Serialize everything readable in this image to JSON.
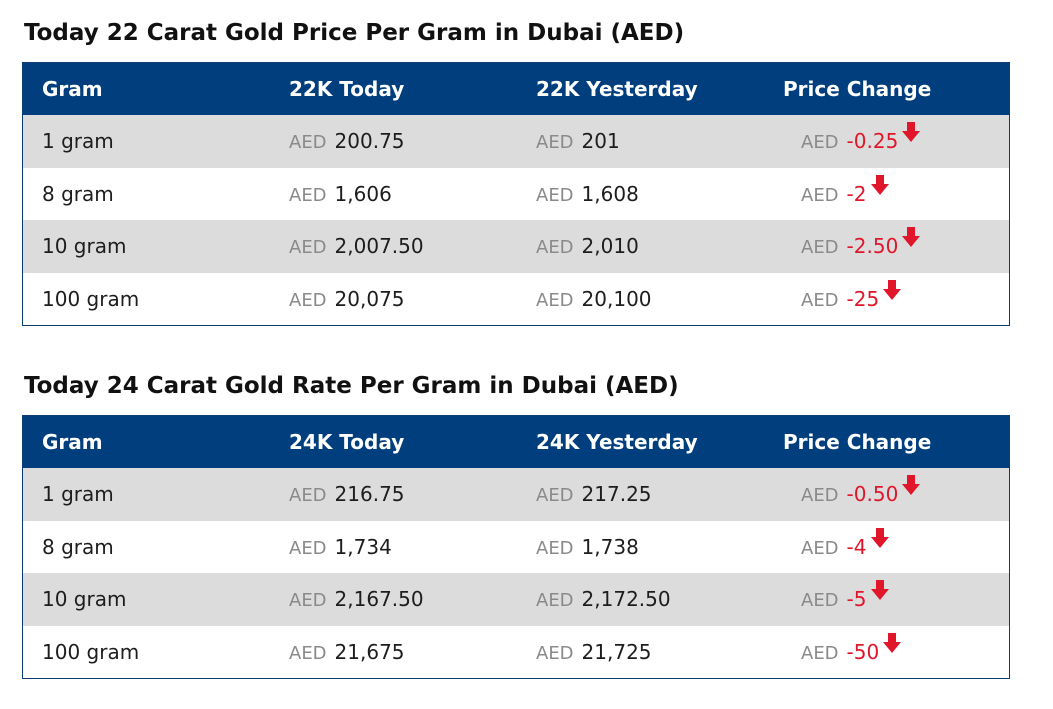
{
  "tables": [
    {
      "title": "Today 22 Carat Gold Price Per Gram in Dubai (AED)",
      "headers": [
        "Gram",
        "22K Today",
        "22K Yesterday",
        "Price Change"
      ],
      "currency": "AED",
      "rows": [
        {
          "gram": "1 gram",
          "today": "200.75",
          "yesterday": "201",
          "change": "-0.25"
        },
        {
          "gram": "8 gram",
          "today": "1,606",
          "yesterday": "1,608",
          "change": "-2"
        },
        {
          "gram": "10 gram",
          "today": "2,007.50",
          "yesterday": "2,010",
          "change": "-2.50"
        },
        {
          "gram": "100 gram",
          "today": "20,075",
          "yesterday": "20,100",
          "change": "-25"
        }
      ]
    },
    {
      "title": "Today 24 Carat Gold Rate Per Gram in Dubai (AED)",
      "headers": [
        "Gram",
        "24K Today",
        "24K Yesterday",
        "Price Change"
      ],
      "currency": "AED",
      "rows": [
        {
          "gram": "1 gram",
          "today": "216.75",
          "yesterday": "217.25",
          "change": "-0.50"
        },
        {
          "gram": "8 gram",
          "today": "1,734",
          "yesterday": "1,738",
          "change": "-4"
        },
        {
          "gram": "10 gram",
          "today": "2,167.50",
          "yesterday": "2,172.50",
          "change": "-5"
        },
        {
          "gram": "100 gram",
          "today": "21,675",
          "yesterday": "21,725",
          "change": "-50"
        }
      ]
    }
  ],
  "colors": {
    "header_bg": "#003e7e",
    "shade_row": "#dcdcdc",
    "negative": "#e0162b",
    "currency_label": "#8a8a8a"
  },
  "icons": {
    "change_indicator": "arrow-down-icon"
  }
}
